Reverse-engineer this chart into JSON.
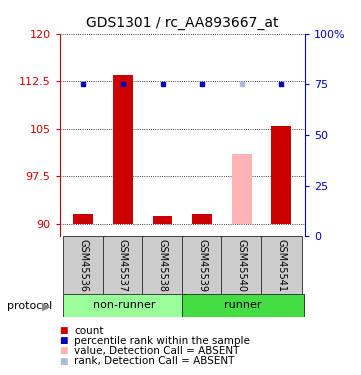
{
  "title": "GDS1301 / rc_AA893667_at",
  "samples": [
    "GSM45536",
    "GSM45537",
    "GSM45538",
    "GSM45539",
    "GSM45540",
    "GSM45541"
  ],
  "count_values": [
    91.5,
    113.5,
    91.2,
    91.5,
    101.0,
    105.5
  ],
  "rank_values": [
    75,
    75,
    75,
    75,
    75,
    75
  ],
  "absent_flags": [
    false,
    false,
    false,
    false,
    true,
    false
  ],
  "ylim_left": [
    88,
    120
  ],
  "ylim_right": [
    0,
    100
  ],
  "yticks_left": [
    90,
    97.5,
    105,
    112.5,
    120
  ],
  "yticks_right": [
    0,
    25,
    50,
    75,
    100
  ],
  "ytick_labels_left": [
    "90",
    "97.5",
    "105",
    "112.5",
    "120"
  ],
  "ytick_labels_right": [
    "0",
    "25",
    "50",
    "75",
    "100%"
  ],
  "bar_color_present": "#cc0000",
  "bar_color_absent": "#ffb3b3",
  "dot_color_present": "#0000bb",
  "dot_color_absent": "#aabbdd",
  "group_color_nonrunner": "#99ff99",
  "group_color_runner": "#44dd44",
  "group_bg_color": "#cccccc",
  "bar_width": 0.5,
  "legend_items": [
    {
      "label": "count",
      "color": "#cc0000"
    },
    {
      "label": "percentile rank within the sample",
      "color": "#0000bb"
    },
    {
      "label": "value, Detection Call = ABSENT",
      "color": "#ffb3b3"
    },
    {
      "label": "rank, Detection Call = ABSENT",
      "color": "#aabbdd"
    }
  ],
  "protocol_label": "protocol",
  "title_fontsize": 10,
  "tick_fontsize": 8,
  "label_fontsize": 7,
  "legend_fontsize": 7.5
}
